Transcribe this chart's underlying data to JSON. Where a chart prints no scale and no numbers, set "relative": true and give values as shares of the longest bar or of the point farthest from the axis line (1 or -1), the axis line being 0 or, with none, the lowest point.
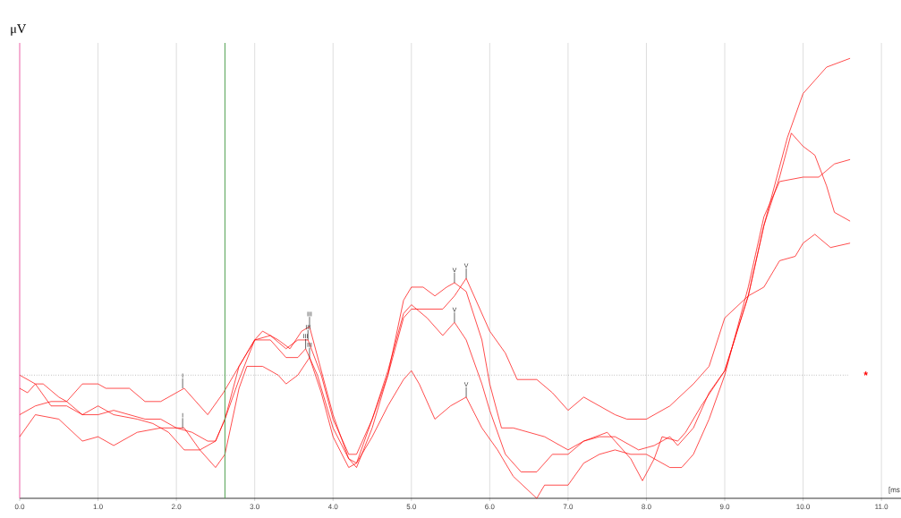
{
  "chart_data": {
    "type": "line",
    "relative": true,
    "xlabel": "[ms",
    "ylabel": "μV",
    "xlim": [
      0,
      11.25
    ],
    "xticks": [
      {
        "value": 0,
        "label": "0.0"
      },
      {
        "value": 1,
        "label": "1.0"
      },
      {
        "value": 2,
        "label": "2.0"
      },
      {
        "value": 3,
        "label": "3.0"
      },
      {
        "value": 4,
        "label": "4.0"
      },
      {
        "value": 5,
        "label": "5.0"
      },
      {
        "value": 6,
        "label": "6.0"
      },
      {
        "value": 7,
        "label": "7.0"
      },
      {
        "value": 8,
        "label": "8.0"
      },
      {
        "value": 9,
        "label": "9.0"
      },
      {
        "value": 10,
        "label": "10.0"
      },
      {
        "value": 11,
        "label": "11.0"
      }
    ],
    "grid": "x",
    "series": [
      {
        "color": "#ff0000",
        "x": [
          0,
          0.2,
          0.4,
          0.6,
          0.8,
          1.0,
          1.2,
          1.4,
          1.6,
          1.8,
          2.0,
          2.2,
          2.4,
          2.5,
          2.62,
          2.8,
          3.0,
          3.1,
          3.3,
          3.45,
          3.6,
          3.7,
          3.85,
          4.0,
          4.2,
          4.3,
          4.5,
          4.7,
          4.9,
          5.0,
          5.15,
          5.3,
          5.45,
          5.55,
          5.7,
          5.9,
          6.0,
          6.15,
          6.3,
          6.5,
          6.7,
          7.0,
          7.2,
          7.5,
          7.8,
          7.95,
          8.1,
          8.2,
          8.4,
          8.5,
          8.7,
          9.0,
          9.3,
          9.5,
          9.8,
          10.0,
          10.15,
          10.3,
          10.45,
          10.6
        ],
        "values": [
          0.28,
          0.26,
          0.21,
          0.21,
          0.19,
          0.19,
          0.2,
          0.19,
          0.18,
          0.18,
          0.16,
          0.15,
          0.13,
          0.13,
          0.18,
          0.27,
          0.36,
          0.38,
          0.36,
          0.34,
          0.38,
          0.39,
          0.29,
          0.19,
          0.09,
          0.08,
          0.18,
          0.28,
          0.45,
          0.48,
          0.48,
          0.46,
          0.48,
          0.49,
          0.47,
          0.36,
          0.26,
          0.16,
          0.16,
          0.15,
          0.14,
          0.11,
          0.13,
          0.15,
          0.09,
          0.04,
          0.09,
          0.14,
          0.13,
          0.15,
          0.21,
          0.29,
          0.46,
          0.62,
          0.82,
          0.92,
          0.95,
          0.98,
          0.99,
          1.0
        ]
      },
      {
        "color": "#ff0000",
        "x": [
          0,
          0.1,
          0.2,
          0.3,
          0.5,
          0.6,
          0.8,
          1.0,
          1.2,
          1.5,
          1.7,
          1.9,
          2.1,
          2.3,
          2.5,
          2.62,
          2.8,
          3.0,
          3.2,
          3.4,
          3.55,
          3.65,
          3.8,
          4.0,
          4.2,
          4.3,
          4.5,
          4.7,
          4.9,
          5.0,
          5.2,
          5.4,
          5.55,
          5.7,
          5.85,
          6.0,
          6.2,
          6.35,
          6.6,
          6.8,
          7.0,
          7.2,
          7.4,
          7.6,
          7.75,
          8.0,
          8.3,
          8.6,
          8.8,
          9.0,
          9.3,
          9.5,
          9.7,
          9.9,
          10.0,
          10.15,
          10.35,
          10.6
        ],
        "values": [
          0.25,
          0.24,
          0.26,
          0.26,
          0.23,
          0.22,
          0.19,
          0.21,
          0.19,
          0.18,
          0.17,
          0.15,
          0.11,
          0.11,
          0.13,
          0.18,
          0.3,
          0.36,
          0.36,
          0.32,
          0.32,
          0.34,
          0.28,
          0.16,
          0.09,
          0.07,
          0.16,
          0.28,
          0.41,
          0.43,
          0.43,
          0.43,
          0.46,
          0.5,
          0.44,
          0.38,
          0.33,
          0.27,
          0.27,
          0.24,
          0.2,
          0.23,
          0.21,
          0.19,
          0.18,
          0.18,
          0.21,
          0.26,
          0.3,
          0.41,
          0.46,
          0.48,
          0.54,
          0.55,
          0.58,
          0.6,
          0.57,
          0.58
        ]
      },
      {
        "color": "#ff0000",
        "x": [
          0,
          0.2,
          0.4,
          0.6,
          0.8,
          1.0,
          1.1,
          1.4,
          1.6,
          1.8,
          2.1,
          2.4,
          2.6,
          2.8,
          3.0,
          3.2,
          3.4,
          3.55,
          3.68,
          3.85,
          4.0,
          4.2,
          4.3,
          4.5,
          4.7,
          4.9,
          5.0,
          5.2,
          5.4,
          5.55,
          5.7,
          5.9,
          6.0,
          6.2,
          6.4,
          6.6,
          6.8,
          7.0,
          7.2,
          7.4,
          7.6,
          7.9,
          8.1,
          8.3,
          8.4,
          8.6,
          8.8,
          9.0,
          9.3,
          9.5,
          9.7,
          9.85,
          10.0,
          10.15,
          10.3,
          10.4,
          10.6
        ],
        "values": [
          0.19,
          0.21,
          0.22,
          0.22,
          0.26,
          0.26,
          0.25,
          0.25,
          0.22,
          0.22,
          0.25,
          0.19,
          0.24,
          0.3,
          0.36,
          0.37,
          0.34,
          0.36,
          0.36,
          0.28,
          0.18,
          0.1,
          0.1,
          0.18,
          0.29,
          0.42,
          0.44,
          0.41,
          0.37,
          0.4,
          0.36,
          0.26,
          0.2,
          0.1,
          0.06,
          0.06,
          0.1,
          0.1,
          0.13,
          0.14,
          0.14,
          0.11,
          0.12,
          0.14,
          0.12,
          0.16,
          0.24,
          0.29,
          0.46,
          0.62,
          0.73,
          0.83,
          0.8,
          0.78,
          0.71,
          0.65,
          0.63
        ]
      },
      {
        "color": "#ff0000",
        "x": [
          0,
          0.2,
          0.5,
          0.8,
          1.0,
          1.2,
          1.5,
          1.8,
          1.9,
          2.1,
          2.3,
          2.5,
          2.62,
          2.8,
          2.9,
          3.1,
          3.3,
          3.4,
          3.55,
          3.7,
          3.85,
          4.0,
          4.2,
          4.3,
          4.5,
          4.7,
          4.9,
          5.0,
          5.1,
          5.3,
          5.5,
          5.7,
          5.9,
          6.1,
          6.3,
          6.6,
          6.7,
          7.0,
          7.2,
          7.4,
          7.6,
          7.8,
          8.0,
          8.3,
          8.45,
          8.6,
          8.8,
          9.0,
          9.3,
          9.5,
          9.7,
          10.0,
          10.2,
          10.4,
          10.6
        ],
        "values": [
          0.14,
          0.19,
          0.18,
          0.13,
          0.14,
          0.12,
          0.15,
          0.16,
          0.16,
          0.16,
          0.11,
          0.07,
          0.1,
          0.25,
          0.3,
          0.3,
          0.28,
          0.26,
          0.28,
          0.32,
          0.24,
          0.14,
          0.07,
          0.08,
          0.14,
          0.21,
          0.27,
          0.29,
          0.26,
          0.18,
          0.21,
          0.23,
          0.16,
          0.11,
          0.05,
          0.0,
          0.03,
          0.03,
          0.08,
          0.1,
          0.11,
          0.1,
          0.1,
          0.07,
          0.07,
          0.1,
          0.18,
          0.28,
          0.48,
          0.64,
          0.72,
          0.73,
          0.73,
          0.76,
          0.77
        ]
      }
    ],
    "ref_lines": [
      {
        "axis": "y",
        "value": 0.28,
        "label": "*",
        "color": "#808080",
        "line_style": "dotted"
      },
      {
        "axis": "x",
        "value": 2.62,
        "label": null,
        "color": "#4f9f4f",
        "line_style": "solid"
      }
    ],
    "annotations": [
      {
        "text": "I",
        "x": 2.08,
        "y": 0.25
      },
      {
        "text": "I",
        "x": 2.08,
        "y": 0.16
      },
      {
        "text": "III",
        "x": 3.65,
        "y": 0.34
      },
      {
        "text": "III",
        "x": 3.68,
        "y": 0.36
      },
      {
        "text": "III",
        "x": 3.7,
        "y": 0.39
      },
      {
        "text": "III",
        "x": 3.7,
        "y": 0.32
      },
      {
        "text": "V",
        "x": 5.55,
        "y": 0.49
      },
      {
        "text": "V",
        "x": 5.7,
        "y": 0.5
      },
      {
        "text": "V",
        "x": 5.55,
        "y": 0.4
      },
      {
        "text": "V",
        "x": 5.7,
        "y": 0.23
      }
    ]
  }
}
